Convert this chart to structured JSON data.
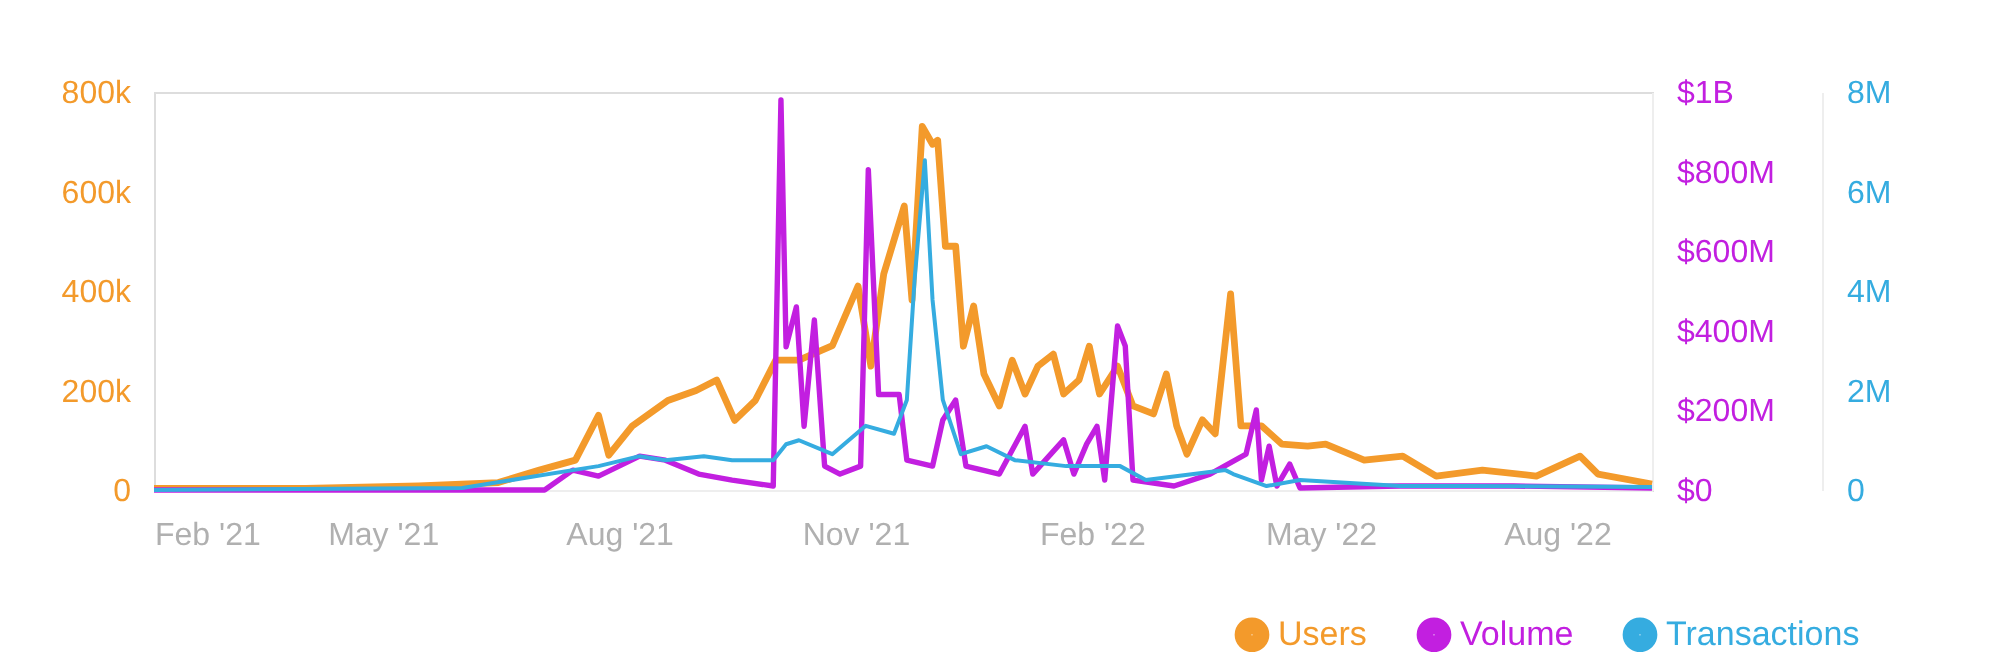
{
  "chart_data": {
    "type": "line",
    "xlim": [
      "2021-02-01",
      "2022-09-07"
    ],
    "xticks": [
      {
        "value": "2021-02-01",
        "label": "Feb '21"
      },
      {
        "value": "2021-05-01",
        "label": "May '21"
      },
      {
        "value": "2021-08-01",
        "label": "Aug '21"
      },
      {
        "value": "2021-11-01",
        "label": "Nov '21"
      },
      {
        "value": "2022-02-01",
        "label": "Feb '22"
      },
      {
        "value": "2022-05-01",
        "label": "May '22"
      },
      {
        "value": "2022-08-01",
        "label": "Aug '22"
      }
    ],
    "ylim": [
      0,
      800000
    ],
    "yticks": [
      {
        "value": 0,
        "label": "0"
      },
      {
        "value": 200000,
        "label": "200k"
      },
      {
        "value": 400000,
        "label": "400k"
      },
      {
        "value": 600000,
        "label": "600k"
      },
      {
        "value": 800000,
        "label": "800k"
      }
    ],
    "y2lim": [
      0,
      1000000000
    ],
    "y2ticks": [
      {
        "value": 0,
        "label": "$0"
      },
      {
        "value": 200000000,
        "label": "$200M"
      },
      {
        "value": 400000000,
        "label": "$400M"
      },
      {
        "value": 600000000,
        "label": "$600M"
      },
      {
        "value": 800000000,
        "label": "$800M"
      },
      {
        "value": 1000000000,
        "label": "$1B"
      }
    ],
    "y3lim": [
      0,
      8000000
    ],
    "y3ticks": [
      {
        "value": 0,
        "label": "0"
      },
      {
        "value": 2000000,
        "label": "2M"
      },
      {
        "value": 4000000,
        "label": "4M"
      },
      {
        "value": 6000000,
        "label": "6M"
      },
      {
        "value": 8000000,
        "label": "8M"
      }
    ],
    "grid": false,
    "legend": "bottom right",
    "line_style": "solid",
    "series": [
      {
        "name": "Users",
        "color": "#f39a2b",
        "axis": "y",
        "x": [
          "2021-02-01",
          "2021-04-01",
          "2021-05-15",
          "2021-06-15",
          "2021-07-01",
          "2021-07-15",
          "2021-07-24",
          "2021-07-28",
          "2021-08-06",
          "2021-08-20",
          "2021-08-31",
          "2021-09-08",
          "2021-09-15",
          "2021-09-23",
          "2021-10-01",
          "2021-10-10",
          "2021-10-23",
          "2021-11-02",
          "2021-11-07",
          "2021-11-12",
          "2021-11-20",
          "2021-11-23",
          "2021-11-27",
          "2021-12-01",
          "2021-12-03",
          "2021-12-06",
          "2021-12-10",
          "2021-12-13",
          "2021-12-17",
          "2021-12-21",
          "2021-12-27",
          "2022-01-01",
          "2022-01-06",
          "2022-01-11",
          "2022-01-17",
          "2022-01-21",
          "2022-01-27",
          "2022-01-31",
          "2022-02-04",
          "2022-02-11",
          "2022-02-17",
          "2022-02-25",
          "2022-03-02",
          "2022-03-06",
          "2022-03-10",
          "2022-03-16",
          "2022-03-21",
          "2022-03-27",
          "2022-03-31",
          "2022-04-08",
          "2022-04-16",
          "2022-04-26",
          "2022-05-03",
          "2022-05-18",
          "2022-06-02",
          "2022-06-15",
          "2022-07-03",
          "2022-07-24",
          "2022-08-10",
          "2022-08-17",
          "2022-09-07"
        ],
        "values": [
          3000,
          3000,
          8000,
          15000,
          40000,
          60000,
          150000,
          70000,
          128000,
          180000,
          200000,
          221000,
          140000,
          180000,
          261000,
          261000,
          290000,
          410000,
          249000,
          434000,
          571000,
          382000,
          731000,
          695000,
          703000,
          490000,
          490000,
          289000,
          370000,
          233000,
          169000,
          261000,
          193000,
          249000,
          273000,
          193000,
          221000,
          289000,
          193000,
          249000,
          169000,
          153000,
          233000,
          129000,
          72000,
          141000,
          113000,
          394000,
          129000,
          129000,
          92000,
          88000,
          92000,
          60000,
          68000,
          28000,
          40000,
          28000,
          68000,
          32000,
          12000
        ]
      },
      {
        "name": "Volume",
        "color": "#c21fe0",
        "axis": "y2",
        "x": [
          "2021-02-01",
          "2021-07-03",
          "2021-07-14",
          "2021-07-24",
          "2021-08-09",
          "2021-08-19",
          "2021-09-01",
          "2021-09-14",
          "2021-09-30",
          "2021-10-03",
          "2021-10-05",
          "2021-10-09",
          "2021-10-12",
          "2021-10-16",
          "2021-10-20",
          "2021-10-26",
          "2021-11-03",
          "2021-11-06",
          "2021-11-10",
          "2021-11-18",
          "2021-11-21",
          "2021-12-01",
          "2021-12-05",
          "2021-12-10",
          "2021-12-14",
          "2021-12-27",
          "2022-01-06",
          "2022-01-09",
          "2022-01-21",
          "2022-01-25",
          "2022-01-30",
          "2022-02-03",
          "2022-02-06",
          "2022-02-11",
          "2022-02-14",
          "2022-02-17",
          "2022-03-05",
          "2022-03-19",
          "2022-04-02",
          "2022-04-06",
          "2022-04-08",
          "2022-04-11",
          "2022-04-14",
          "2022-04-19",
          "2022-04-23",
          "2022-06-01",
          "2022-07-15",
          "2022-09-07"
        ],
        "values": [
          0,
          0,
          50000000,
          35000000,
          85000000,
          75000000,
          40000000,
          25000000,
          10000000,
          980000000,
          360000000,
          460000000,
          160000000,
          427000000,
          60000000,
          40000000,
          60000000,
          805000000,
          240000000,
          240000000,
          75000000,
          60000000,
          176000000,
          226000000,
          60000000,
          40000000,
          160000000,
          40000000,
          126000000,
          40000000,
          116000000,
          160000000,
          25000000,
          412000000,
          362000000,
          25000000,
          10000000,
          40000000,
          90000000,
          201000000,
          25000000,
          110000000,
          10000000,
          65000000,
          5000000,
          10000000,
          10000000,
          5000000
        ]
      },
      {
        "name": "Transactions",
        "color": "#35ace0",
        "axis": "y3",
        "x": [
          "2021-02-01",
          "2021-06-01",
          "2021-07-14",
          "2021-07-24",
          "2021-08-09",
          "2021-08-19",
          "2021-09-03",
          "2021-09-14",
          "2021-09-30",
          "2021-10-05",
          "2021-10-10",
          "2021-10-23",
          "2021-11-05",
          "2021-11-16",
          "2021-11-21",
          "2021-11-24",
          "2021-11-28",
          "2021-12-01",
          "2021-12-05",
          "2021-12-12",
          "2021-12-22",
          "2022-01-02",
          "2022-01-22",
          "2022-02-12",
          "2022-02-22",
          "2022-03-25",
          "2022-03-28",
          "2022-04-10",
          "2022-04-23",
          "2022-06-01",
          "2022-06-27",
          "2022-09-07"
        ],
        "values": [
          0,
          40000,
          400000,
          480000,
          680000,
          600000,
          680000,
          600000,
          600000,
          920000,
          1000000,
          720000,
          1290000,
          1130000,
          1810000,
          4220000,
          6630000,
          3820000,
          1810000,
          720000,
          880000,
          600000,
          480000,
          480000,
          200000,
          400000,
          320000,
          80000,
          200000,
          80000,
          80000,
          60000
        ]
      }
    ]
  }
}
